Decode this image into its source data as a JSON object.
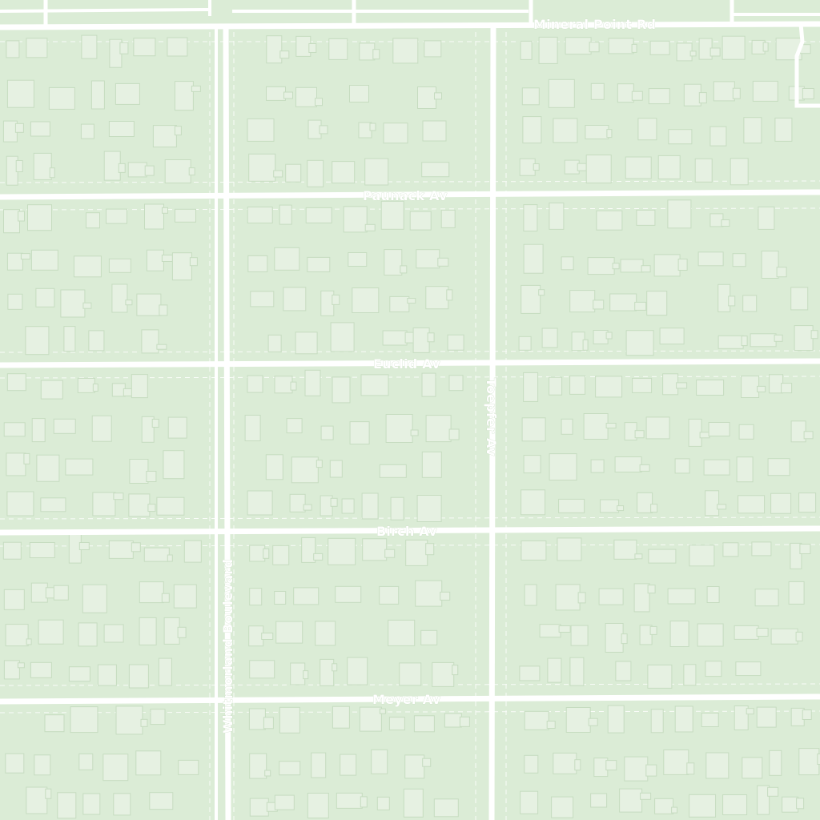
{
  "map": {
    "colors": {
      "land": "#dbecd6",
      "road": "#ffffff",
      "building_fill": "#e6f1e2",
      "building_stroke": "#c6dcc0",
      "label_halo": "#c9dcc3"
    },
    "streets": {
      "mineral_point": "Mineral Point Rd",
      "paunack": "Paunack Av",
      "euclid": "Euclid Av",
      "birch": "Birch Av",
      "meyer": "Meyer Av",
      "toepfer": "Toepfer Av",
      "whitmorland": "Whitmorland Boulevard"
    }
  }
}
